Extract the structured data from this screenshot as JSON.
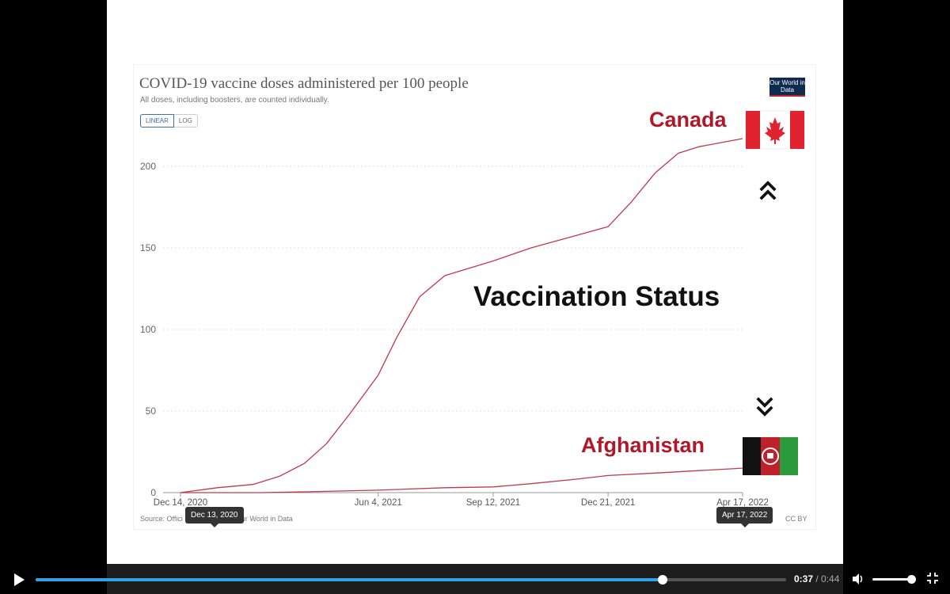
{
  "chart": {
    "title": "COVID-19 vaccine doses administered per 100 people",
    "subtitle": "All doses, including boosters, are counted individually.",
    "scale_linear": "LINEAR",
    "scale_log": "LOG",
    "logo": "Our World in Data",
    "source": "Source: Offici",
    "source_tail": "Our World in Data",
    "license": "CC BY"
  },
  "chart_data": {
    "type": "line",
    "title": "COVID-19 vaccine doses administered per 100 people",
    "ylim": [
      0,
      220
    ],
    "y_ticks": [
      0,
      50,
      100,
      150,
      200
    ],
    "x_ticks": [
      "Dec 14, 2020",
      "Jun 4, 2021",
      "Sep 12, 2021",
      "Dec 21, 2021",
      "Apr 17, 2022"
    ],
    "series": [
      {
        "name": "Canada",
        "color": "#c0394b",
        "x": [
          "Dec 14, 2020",
          "Jan 15, 2021",
          "Feb 15, 2021",
          "Mar 10, 2021",
          "Apr 1, 2021",
          "Apr 20, 2021",
          "May 10, 2021",
          "Jun 4, 2021",
          "Jun 20, 2021",
          "Jul 10, 2021",
          "Aug 1, 2021",
          "Sep 12, 2021",
          "Oct 15, 2021",
          "Nov 20, 2021",
          "Dec 21, 2021",
          "Jan 10, 2022",
          "Jan 31, 2022",
          "Feb 20, 2022",
          "Mar 10, 2022",
          "Apr 17, 2022"
        ],
        "values": [
          0,
          3,
          5,
          10,
          18,
          30,
          48,
          72,
          95,
          120,
          133,
          142,
          150,
          157,
          163,
          178,
          196,
          208,
          212,
          217
        ]
      },
      {
        "name": "Afghanistan",
        "color": "#c0394b",
        "x": [
          "Dec 14, 2020",
          "Feb 22, 2021",
          "Apr 1, 2021",
          "Jun 4, 2021",
          "Aug 1, 2021",
          "Sep 12, 2021",
          "Oct 15, 2021",
          "Nov 20, 2021",
          "Dec 21, 2021",
          "Jan 31, 2022",
          "Mar 10, 2022",
          "Apr 17, 2022"
        ],
        "values": [
          0,
          0,
          0.5,
          1.5,
          3,
          3.5,
          5.5,
          8,
          10.5,
          12,
          13.5,
          15
        ]
      }
    ]
  },
  "overlay": {
    "heading": "Vaccination Status",
    "canada_label": "Canada",
    "afghanistan_label": "Afghanistan",
    "up_chevron": "⌃⌃",
    "down_chevron": "⌄⌄"
  },
  "tooltips": {
    "start": "Dec 13, 2020",
    "end": "Apr 17, 2022"
  },
  "player": {
    "current_time": "0:37",
    "separator": " / ",
    "duration": "0:44",
    "progress": 0.835,
    "volume": 0.9,
    "accent": "#2ea3e6"
  }
}
